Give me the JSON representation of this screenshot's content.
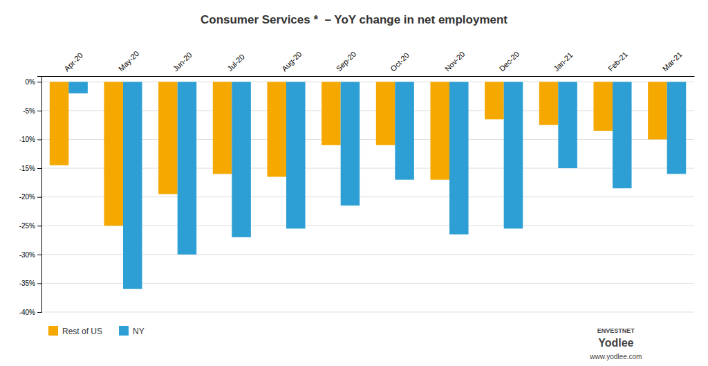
{
  "chart_data": {
    "type": "bar",
    "title": "Consumer Services *  – YoY change in net employment",
    "categories": [
      "Apr-20",
      "May-20",
      "Jun-20",
      "Jul-20",
      "Aug-20",
      "Sep-20",
      "Oct-20",
      "Nov-20",
      "Dec-20",
      "Jan-21",
      "Feb-21",
      "Mar-21"
    ],
    "series": [
      {
        "name": "Rest of US",
        "color": "#F5A800",
        "values": [
          -14.5,
          -25.0,
          -19.5,
          -16.0,
          -16.5,
          -11.0,
          -11.0,
          -17.0,
          -6.5,
          -7.5,
          -8.5,
          -10.0
        ]
      },
      {
        "name": "NY",
        "color": "#2E9FD4",
        "values": [
          -2.0,
          -36.0,
          -30.0,
          -27.0,
          -25.5,
          -21.5,
          -17.0,
          -26.5,
          -25.5,
          -15.0,
          -18.5,
          -16.0
        ]
      }
    ],
    "ylim": [
      -40,
      1
    ],
    "yticks": [
      {
        "value": 0,
        "label": "0%"
      },
      {
        "value": -5,
        "label": "-5%"
      },
      {
        "value": -10,
        "label": "-10%"
      },
      {
        "value": -15,
        "label": "-15%"
      },
      {
        "value": -20,
        "label": "-20%"
      },
      {
        "value": -25,
        "label": "-25%"
      },
      {
        "value": -30,
        "label": "-30%"
      },
      {
        "value": -35,
        "label": "-35%"
      },
      {
        "value": -40,
        "label": "-40%"
      }
    ],
    "grid": true,
    "legend": "lower left",
    "annotations": [
      "ENVESTNET",
      "Yodlee",
      "www.yodlee.com"
    ]
  }
}
